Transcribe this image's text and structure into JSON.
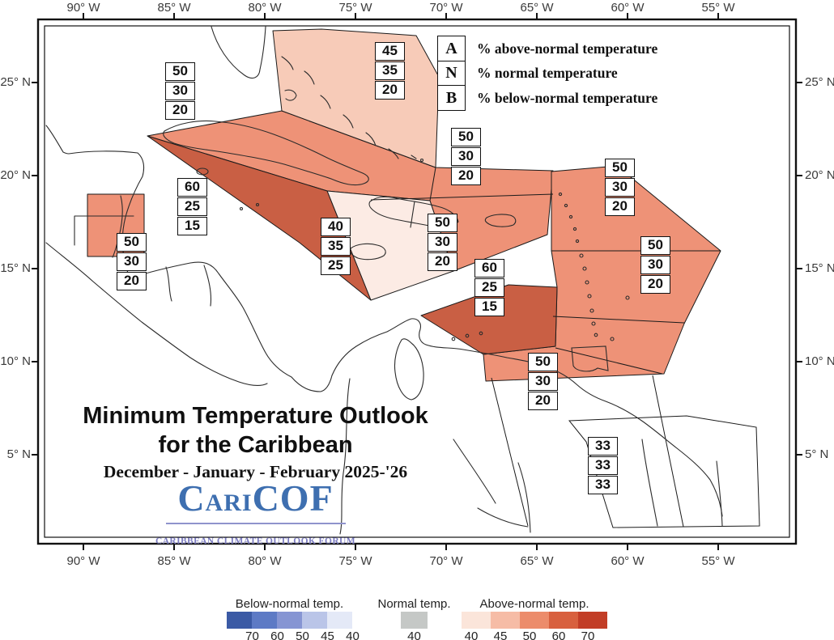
{
  "title": {
    "line1": "Minimum Temperature Outlook",
    "line2": "for the Caribbean",
    "period": "December - January - February 2025-'26"
  },
  "logo": {
    "c1": "C",
    "ari": "ARI",
    "c2": "C",
    "of": "OF",
    "forum": "CARIBBEAN CLIMATE OUTLOOK FORUM"
  },
  "legend": {
    "entries": [
      {
        "key": "A",
        "label": "% above-normal temperature"
      },
      {
        "key": "N",
        "label": "% normal temperature"
      },
      {
        "key": "B",
        "label": "% below-normal temperature"
      }
    ]
  },
  "axes": {
    "lon": [
      "90° W",
      "85° W",
      "80° W",
      "75° W",
      "70° W",
      "65° W",
      "60° W",
      "55° W"
    ],
    "lat": [
      "25° N",
      "20° N",
      "15° N",
      "10° N",
      "5° N"
    ]
  },
  "forecasts": [
    {
      "region": "northwest-cuba-band",
      "above": "50",
      "normal": "30",
      "below": "20"
    },
    {
      "region": "bahamas",
      "above": "45",
      "normal": "35",
      "below": "20"
    },
    {
      "region": "western-caribbean",
      "above": "60",
      "normal": "25",
      "below": "15"
    },
    {
      "region": "belize",
      "above": "50",
      "normal": "30",
      "below": "20"
    },
    {
      "region": "jamaica",
      "above": "40",
      "normal": "35",
      "below": "25"
    },
    {
      "region": "hispaniola-north",
      "above": "50",
      "normal": "30",
      "below": "20"
    },
    {
      "region": "puerto-rico-virgin-islands",
      "above": "50",
      "normal": "30",
      "below": "20"
    },
    {
      "region": "leeward-islands",
      "above": "50",
      "normal": "30",
      "below": "20"
    },
    {
      "region": "windward-islands-east",
      "above": "50",
      "normal": "30",
      "below": "20"
    },
    {
      "region": "southern-caribbean-abc",
      "above": "60",
      "normal": "25",
      "below": "15"
    },
    {
      "region": "trinidad-venezuela-coast",
      "above": "50",
      "normal": "30",
      "below": "20"
    },
    {
      "region": "guianas",
      "above": "33",
      "normal": "33",
      "below": "33"
    }
  ],
  "color_scale": {
    "below": {
      "label": "Below-normal temp.",
      "values": [
        "70",
        "60",
        "50",
        "45",
        "40"
      ],
      "colors": [
        "#3b5aa5",
        "#5d7ac5",
        "#8695d3",
        "#bac5e8",
        "#e4e9f7"
      ]
    },
    "normal": {
      "label": "Normal temp.",
      "values": [
        "40"
      ],
      "colors": [
        "#c5c8c6"
      ]
    },
    "above": {
      "label": "Above-normal temp.",
      "values": [
        "40",
        "45",
        "50",
        "60",
        "70"
      ],
      "colors": [
        "#fbe5da",
        "#f6bca6",
        "#ec8c6b",
        "#d8603e",
        "#c23d26"
      ]
    }
  }
}
